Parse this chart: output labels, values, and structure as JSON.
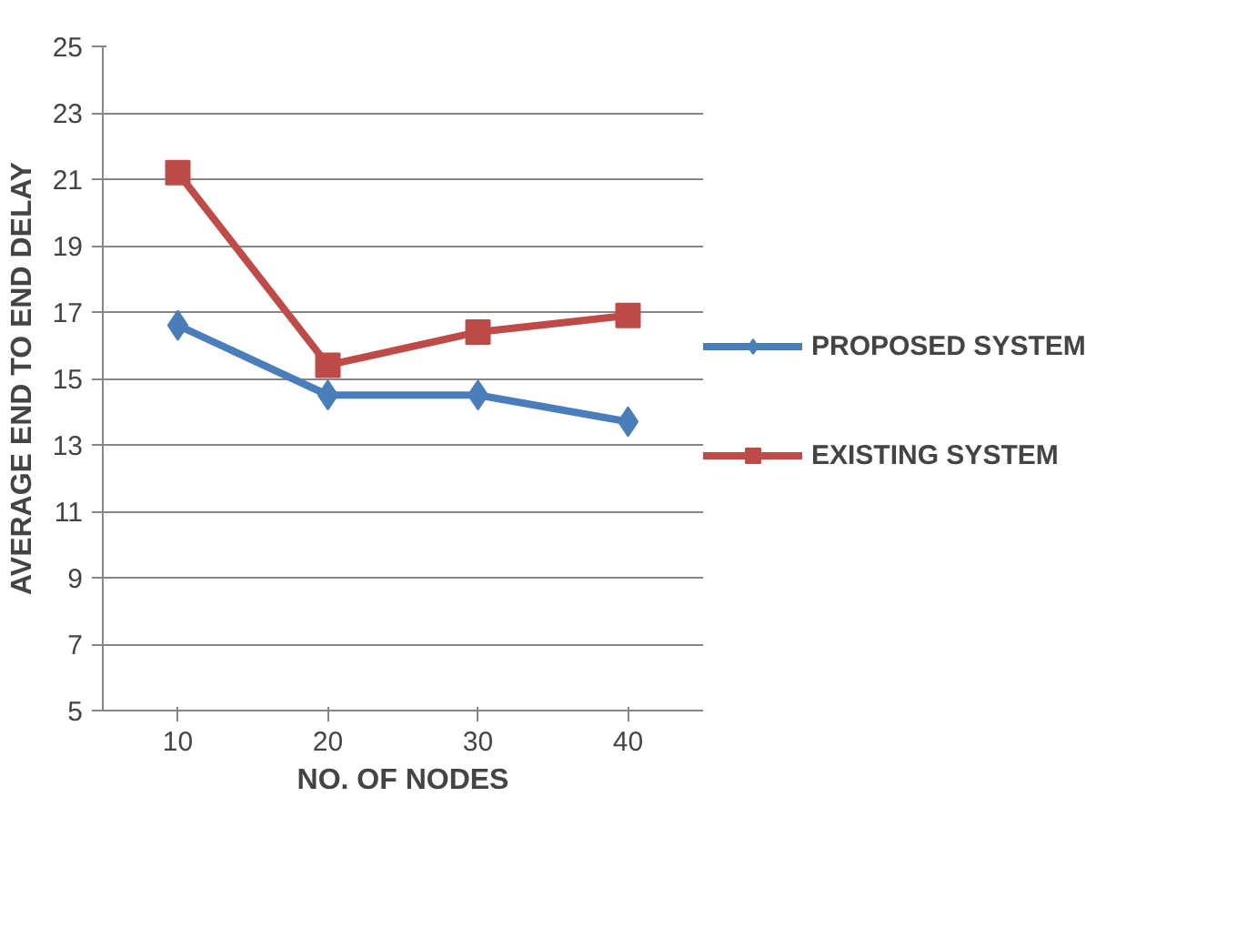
{
  "chart_data": {
    "type": "line",
    "xlabel": "NO. OF NODES",
    "ylabel": "AVERAGE END TO END DELAY",
    "categories": [
      "10",
      "20",
      "30",
      "40"
    ],
    "series": [
      {
        "name": "PROPOSED SYSTEM",
        "color": "#4a7ebb",
        "marker": "diamond",
        "values": [
          16.6,
          14.5,
          14.5,
          13.7
        ]
      },
      {
        "name": "EXISTING SYSTEM",
        "color": "#be4b48",
        "marker": "square",
        "values": [
          21.2,
          15.4,
          16.4,
          16.9
        ]
      }
    ],
    "ylim": [
      5,
      25
    ],
    "yticks": [
      5,
      7,
      9,
      11,
      13,
      15,
      17,
      19,
      21,
      23,
      25
    ],
    "grid": "y",
    "legend": "right",
    "line_style": "solid"
  }
}
